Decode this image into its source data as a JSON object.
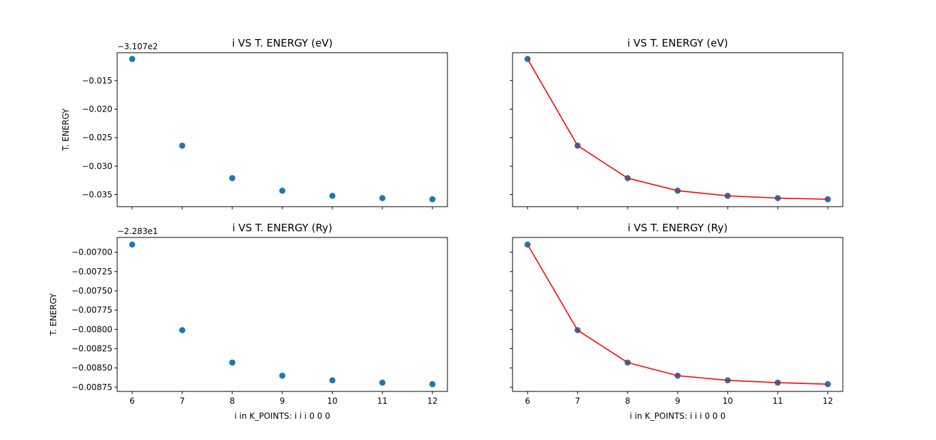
{
  "chart_data": [
    {
      "type": "scatter",
      "title": "i VS T. ENERGY (eV)",
      "xlabel": "",
      "ylabel": "T. ENERGY",
      "offset_label": "−3.107e2",
      "x": [
        6,
        7,
        8,
        9,
        10,
        11,
        12
      ],
      "series": [
        {
          "values": [
            -0.0112,
            -0.0264,
            -0.0321,
            -0.0343,
            -0.0352,
            -0.0356,
            -0.0358
          ],
          "marker": "circle",
          "color": "#1f77b4"
        }
      ],
      "xlim": [
        5.7,
        12.3
      ],
      "ylim": [
        -0.0371,
        -0.0101
      ],
      "xticks": [
        6,
        7,
        8,
        9,
        10,
        11,
        12
      ],
      "xtick_labels": [
        "6",
        "7",
        "8",
        "9",
        "10",
        "11",
        "12"
      ],
      "show_xtick_labels": false,
      "yticks": [
        -0.015,
        -0.02,
        -0.025,
        -0.03,
        -0.035
      ],
      "ytick_labels": [
        "−0.015",
        "−0.020",
        "−0.025",
        "−0.030",
        "−0.035"
      ],
      "show_ytick_labels": true,
      "grid": false
    },
    {
      "type": "line",
      "title": "i VS T. ENERGY (eV)",
      "xlabel": "",
      "ylabel": "",
      "offset_label": "",
      "x": [
        6,
        7,
        8,
        9,
        10,
        11,
        12
      ],
      "series": [
        {
          "values": [
            -0.0112,
            -0.0264,
            -0.0321,
            -0.0343,
            -0.0352,
            -0.0356,
            -0.0358
          ],
          "marker": "circle",
          "color": "#1f77b4"
        },
        {
          "values": [
            -0.0112,
            -0.0264,
            -0.0321,
            -0.0343,
            -0.0352,
            -0.0356,
            -0.0358
          ],
          "marker": "none",
          "color": "#ff0000",
          "line": true
        }
      ],
      "xlim": [
        5.7,
        12.3
      ],
      "ylim": [
        -0.0371,
        -0.0101
      ],
      "xticks": [
        6,
        7,
        8,
        9,
        10,
        11,
        12
      ],
      "xtick_labels": [
        "6",
        "7",
        "8",
        "9",
        "10",
        "11",
        "12"
      ],
      "show_xtick_labels": false,
      "yticks": [
        -0.015,
        -0.02,
        -0.025,
        -0.03,
        -0.035
      ],
      "ytick_labels": [
        "−0.015",
        "−0.020",
        "−0.025",
        "−0.030",
        "−0.035"
      ],
      "show_ytick_labels": false,
      "grid": false
    },
    {
      "type": "scatter",
      "title": "i VS T. ENERGY (Ry)",
      "xlabel": "i in K_POINTS: i i i 0 0 0",
      "ylabel": "T. ENERGY",
      "offset_label": "−2.283e1",
      "x": [
        6,
        7,
        8,
        9,
        10,
        11,
        12
      ],
      "series": [
        {
          "values": [
            -0.0069,
            -0.00801,
            -0.00843,
            -0.0086,
            -0.00866,
            -0.00869,
            -0.00871
          ],
          "marker": "circle",
          "color": "#1f77b4"
        }
      ],
      "xlim": [
        5.7,
        12.3
      ],
      "ylim": [
        -0.008804,
        -0.006808
      ],
      "xticks": [
        6,
        7,
        8,
        9,
        10,
        11,
        12
      ],
      "xtick_labels": [
        "6",
        "7",
        "8",
        "9",
        "10",
        "11",
        "12"
      ],
      "show_xtick_labels": true,
      "yticks": [
        -0.007,
        -0.00725,
        -0.0075,
        -0.00775,
        -0.008,
        -0.00825,
        -0.0085,
        -0.00875
      ],
      "ytick_labels": [
        "−0.00700",
        "−0.00725",
        "−0.00750",
        "−0.00775",
        "−0.00800",
        "−0.00825",
        "−0.00850",
        "−0.00875"
      ],
      "show_ytick_labels": true,
      "grid": false
    },
    {
      "type": "line",
      "title": "i VS T. ENERGY (Ry)",
      "xlabel": "i in K_POINTS: i i i 0 0 0",
      "ylabel": "",
      "offset_label": "",
      "x": [
        6,
        7,
        8,
        9,
        10,
        11,
        12
      ],
      "series": [
        {
          "values": [
            -0.0069,
            -0.00801,
            -0.00843,
            -0.0086,
            -0.00866,
            -0.00869,
            -0.00871
          ],
          "marker": "circle",
          "color": "#1f77b4"
        },
        {
          "values": [
            -0.0069,
            -0.00801,
            -0.00843,
            -0.0086,
            -0.00866,
            -0.00869,
            -0.00871
          ],
          "marker": "none",
          "color": "#ff0000",
          "line": true
        }
      ],
      "xlim": [
        5.7,
        12.3
      ],
      "ylim": [
        -0.008804,
        -0.006808
      ],
      "xticks": [
        6,
        7,
        8,
        9,
        10,
        11,
        12
      ],
      "xtick_labels": [
        "6",
        "7",
        "8",
        "9",
        "10",
        "11",
        "12"
      ],
      "show_xtick_labels": true,
      "yticks": [
        -0.007,
        -0.00725,
        -0.0075,
        -0.00775,
        -0.008,
        -0.00825,
        -0.0085,
        -0.00875
      ],
      "ytick_labels": [
        "−0.00700",
        "−0.00725",
        "−0.00750",
        "−0.00775",
        "−0.00800",
        "−0.00825",
        "−0.00850",
        "−0.00875"
      ],
      "show_ytick_labels": false,
      "grid": false
    }
  ]
}
